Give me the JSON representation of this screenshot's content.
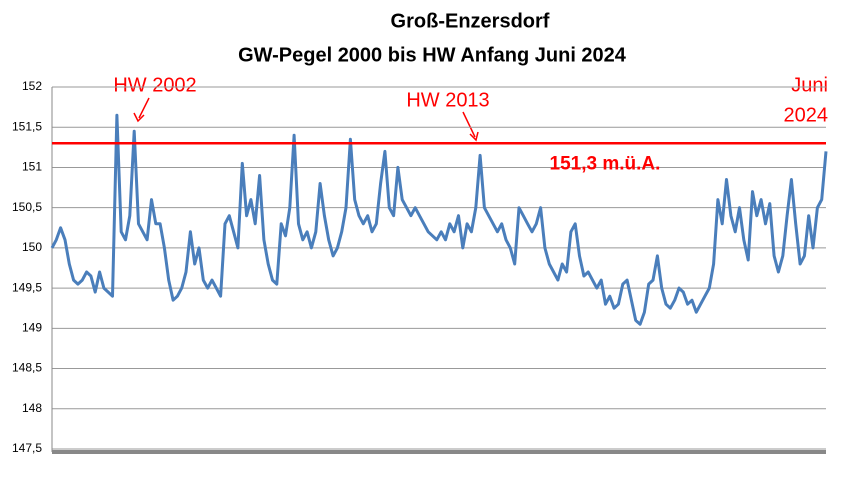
{
  "chart_data": {
    "type": "line",
    "title": [
      "Groß-Enzersdorf",
      "GW-Pegel 2000 bis HW Anfang Juni 2024"
    ],
    "color": "#4a7ebb",
    "values": [
      150.0,
      150.1,
      150.25,
      150.1,
      149.8,
      149.6,
      149.55,
      149.6,
      149.7,
      149.65,
      149.45,
      149.7,
      149.5,
      149.45,
      149.4,
      151.65,
      150.2,
      150.1,
      150.4,
      151.45,
      150.3,
      150.2,
      150.1,
      150.6,
      150.3,
      150.3,
      150.0,
      149.6,
      149.35,
      149.4,
      149.5,
      149.7,
      150.2,
      149.8,
      150.0,
      149.6,
      149.5,
      149.6,
      149.5,
      149.4,
      150.3,
      150.4,
      150.2,
      150.0,
      151.05,
      150.4,
      150.6,
      150.3,
      150.9,
      150.1,
      149.8,
      149.6,
      149.55,
      150.3,
      150.15,
      150.5,
      151.4,
      150.3,
      150.1,
      150.2,
      150.0,
      150.2,
      150.8,
      150.4,
      150.1,
      149.9,
      150.0,
      150.2,
      150.5,
      151.35,
      150.6,
      150.4,
      150.3,
      150.4,
      150.2,
      150.3,
      150.8,
      151.2,
      150.5,
      150.4,
      151.0,
      150.6,
      150.5,
      150.4,
      150.5,
      150.4,
      150.3,
      150.2,
      150.15,
      150.1,
      150.2,
      150.1,
      150.3,
      150.2,
      150.4,
      150.0,
      150.3,
      150.2,
      150.5,
      151.15,
      150.5,
      150.4,
      150.3,
      150.2,
      150.3,
      150.1,
      150.0,
      149.8,
      150.5,
      150.4,
      150.3,
      150.2,
      150.3,
      150.5,
      150.0,
      149.8,
      149.7,
      149.6,
      149.8,
      149.7,
      150.2,
      150.3,
      149.9,
      149.65,
      149.7,
      149.6,
      149.5,
      149.6,
      149.3,
      149.4,
      149.25,
      149.3,
      149.55,
      149.6,
      149.35,
      149.1,
      149.05,
      149.2,
      149.55,
      149.6,
      149.9,
      149.5,
      149.3,
      149.25,
      149.35,
      149.5,
      149.45,
      149.3,
      149.35,
      149.2,
      149.3,
      149.4,
      149.5,
      149.8,
      150.6,
      150.3,
      150.85,
      150.4,
      150.2,
      150.5,
      150.1,
      149.85,
      150.7,
      150.4,
      150.6,
      150.3,
      150.55,
      149.9,
      149.7,
      149.9,
      150.4,
      150.85,
      150.3,
      149.8,
      149.9,
      150.4,
      150.0,
      150.5,
      150.6,
      151.2
    ],
    "ylim": [
      147.5,
      152
    ],
    "yticks": [
      {
        "value": 147.5,
        "label": "147,5"
      },
      148,
      {
        "value": 148.5,
        "label": "148,5"
      },
      149,
      {
        "value": 149.5,
        "label": "149,5"
      },
      150,
      {
        "value": 150.5,
        "label": "150,5"
      },
      151,
      {
        "value": 151.5,
        "label": "151,5"
      },
      152
    ],
    "grid": true,
    "reference_line": {
      "value": 151.3,
      "label": "151,3 m.ü.A.",
      "color": "#ff0000"
    },
    "annotations": [
      "HW 2002",
      "HW 2013"
    ],
    "end_note": [
      "Juni",
      "2024"
    ]
  }
}
